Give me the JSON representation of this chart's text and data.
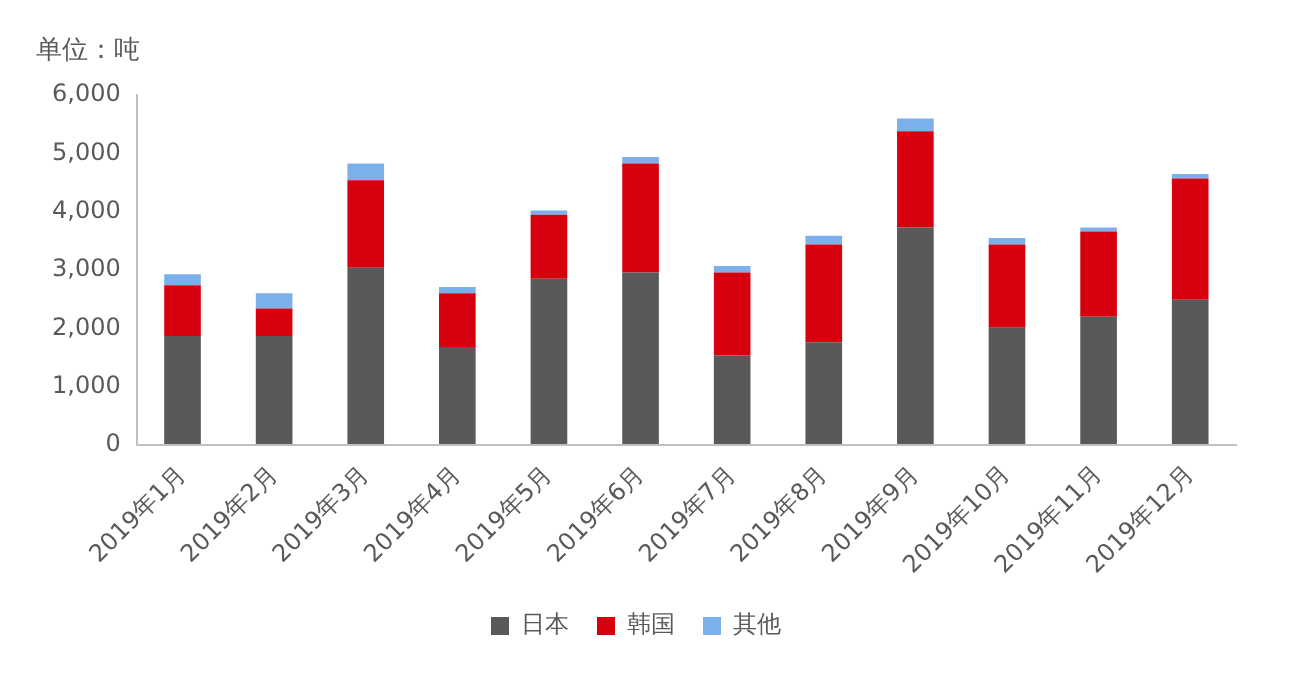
{
  "chart_data": {
    "type": "bar",
    "title": "单位：吨",
    "stacked": true,
    "categories": [
      "2019年1月",
      "2019年2月",
      "2019年3月",
      "2019年4月",
      "2019年5月",
      "2019年6月",
      "2019年7月",
      "2019年8月",
      "2019年9月",
      "2019年10月",
      "2019年11月",
      "2019年12月"
    ],
    "series": [
      {
        "name": "日本",
        "color": "#595959",
        "values": [
          1870,
          1870,
          3040,
          1680,
          2850,
          2960,
          1540,
          1760,
          3730,
          2010,
          2200,
          2490
        ]
      },
      {
        "name": "韩国",
        "color": "#d7000f",
        "values": [
          870,
          470,
          1500,
          920,
          1100,
          1870,
          1420,
          1680,
          1650,
          1430,
          1460,
          2080
        ]
      },
      {
        "name": "其他",
        "color": "#7cb0eb",
        "values": [
          190,
          260,
          290,
          110,
          70,
          110,
          110,
          150,
          220,
          110,
          70,
          80
        ]
      }
    ],
    "ylim": [
      0,
      6000
    ],
    "yticks": [
      {
        "value": 0,
        "label": "0"
      },
      {
        "value": 1000,
        "label": "1,000"
      },
      {
        "value": 2000,
        "label": "2,000"
      },
      {
        "value": 3000,
        "label": "3,000"
      },
      {
        "value": 4000,
        "label": "4,000"
      },
      {
        "value": 5000,
        "label": "5,000"
      },
      {
        "value": 6000,
        "label": "6,000"
      }
    ],
    "grid": false,
    "legend": "bottom"
  }
}
